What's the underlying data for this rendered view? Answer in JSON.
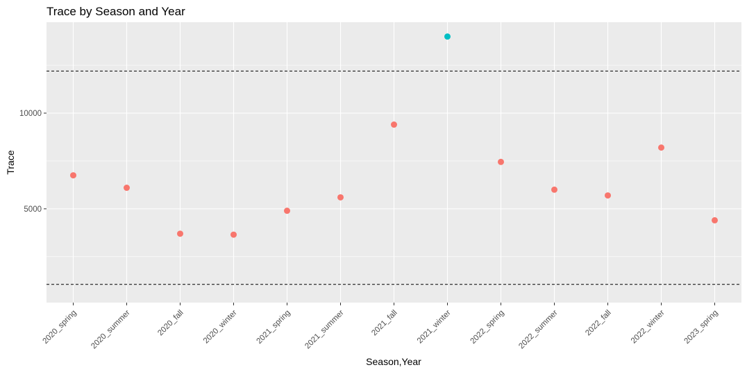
{
  "chart_data": {
    "type": "scatter",
    "title": "Trace by Season and Year",
    "xlabel": "Season,Year",
    "ylabel": "Trace",
    "categories": [
      "2020_spring",
      "2020_summer",
      "2020_fall",
      "2020_winter",
      "2021_spring",
      "2021_summer",
      "2021_fall",
      "2021_winter",
      "2022_spring",
      "2022_summer",
      "2022_fall",
      "2022_winter",
      "2023_spring"
    ],
    "values": [
      6750,
      6100,
      3700,
      3650,
      4900,
      5600,
      9400,
      14000,
      7450,
      6000,
      5700,
      8200,
      4400
    ],
    "point_groups": [
      "normal",
      "normal",
      "normal",
      "normal",
      "normal",
      "normal",
      "normal",
      "outlier",
      "normal",
      "normal",
      "normal",
      "normal",
      "normal"
    ],
    "ylim": [
      100,
      14750
    ],
    "yticks": [
      5000,
      10000
    ],
    "ytick_labels": [
      "5000",
      "10000"
    ],
    "reference_lines": [
      12200,
      1050
    ],
    "reference_line_style": "dashed",
    "grid": true,
    "legend": "none",
    "colors": {
      "normal": "#F8766D",
      "outlier": "#00BFC4",
      "panel": "#EBEBEB",
      "grid": "#FFFFFF",
      "reference_line": "#000000",
      "tick_label": "#4D4D4D",
      "tick_mark": "#333333"
    }
  }
}
